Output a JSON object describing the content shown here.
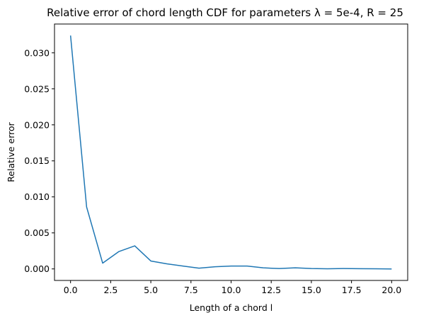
{
  "chart_data": {
    "type": "line",
    "title": "Relative error of chord length CDF for parameters λ = 5e-4, R = 25",
    "xlabel": "Length of a chord l",
    "ylabel": "Relative error",
    "xlim": [
      -1.0,
      21.0
    ],
    "ylim": [
      -0.0016,
      0.034
    ],
    "x_ticks": [
      0.0,
      2.5,
      5.0,
      7.5,
      10.0,
      12.5,
      15.0,
      17.5,
      20.0
    ],
    "x_tick_labels": [
      "0.0",
      "2.5",
      "5.0",
      "7.5",
      "10.0",
      "12.5",
      "15.0",
      "17.5",
      "20.0"
    ],
    "y_ticks": [
      0.0,
      0.005,
      0.01,
      0.015,
      0.02,
      0.025,
      0.03
    ],
    "y_tick_labels": [
      "0.000",
      "0.005",
      "0.010",
      "0.015",
      "0.020",
      "0.025",
      "0.030"
    ],
    "grid": false,
    "legend": "none",
    "series": [
      {
        "color": "#1f77b4",
        "x": [
          0,
          1,
          2,
          3,
          4,
          5,
          6,
          7,
          8,
          9,
          10,
          11,
          12,
          13,
          14,
          15,
          16,
          17,
          18,
          19,
          20
        ],
        "y": [
          0.0324,
          0.0086,
          0.0008,
          0.0024,
          0.0032,
          0.0011,
          0.0007,
          0.0004,
          0.0001,
          0.0003,
          0.0004,
          0.0004,
          0.00015,
          5e-05,
          0.00015,
          5e-05,
          2e-05,
          5e-05,
          3e-05,
          2e-05,
          0.0
        ]
      }
    ]
  }
}
